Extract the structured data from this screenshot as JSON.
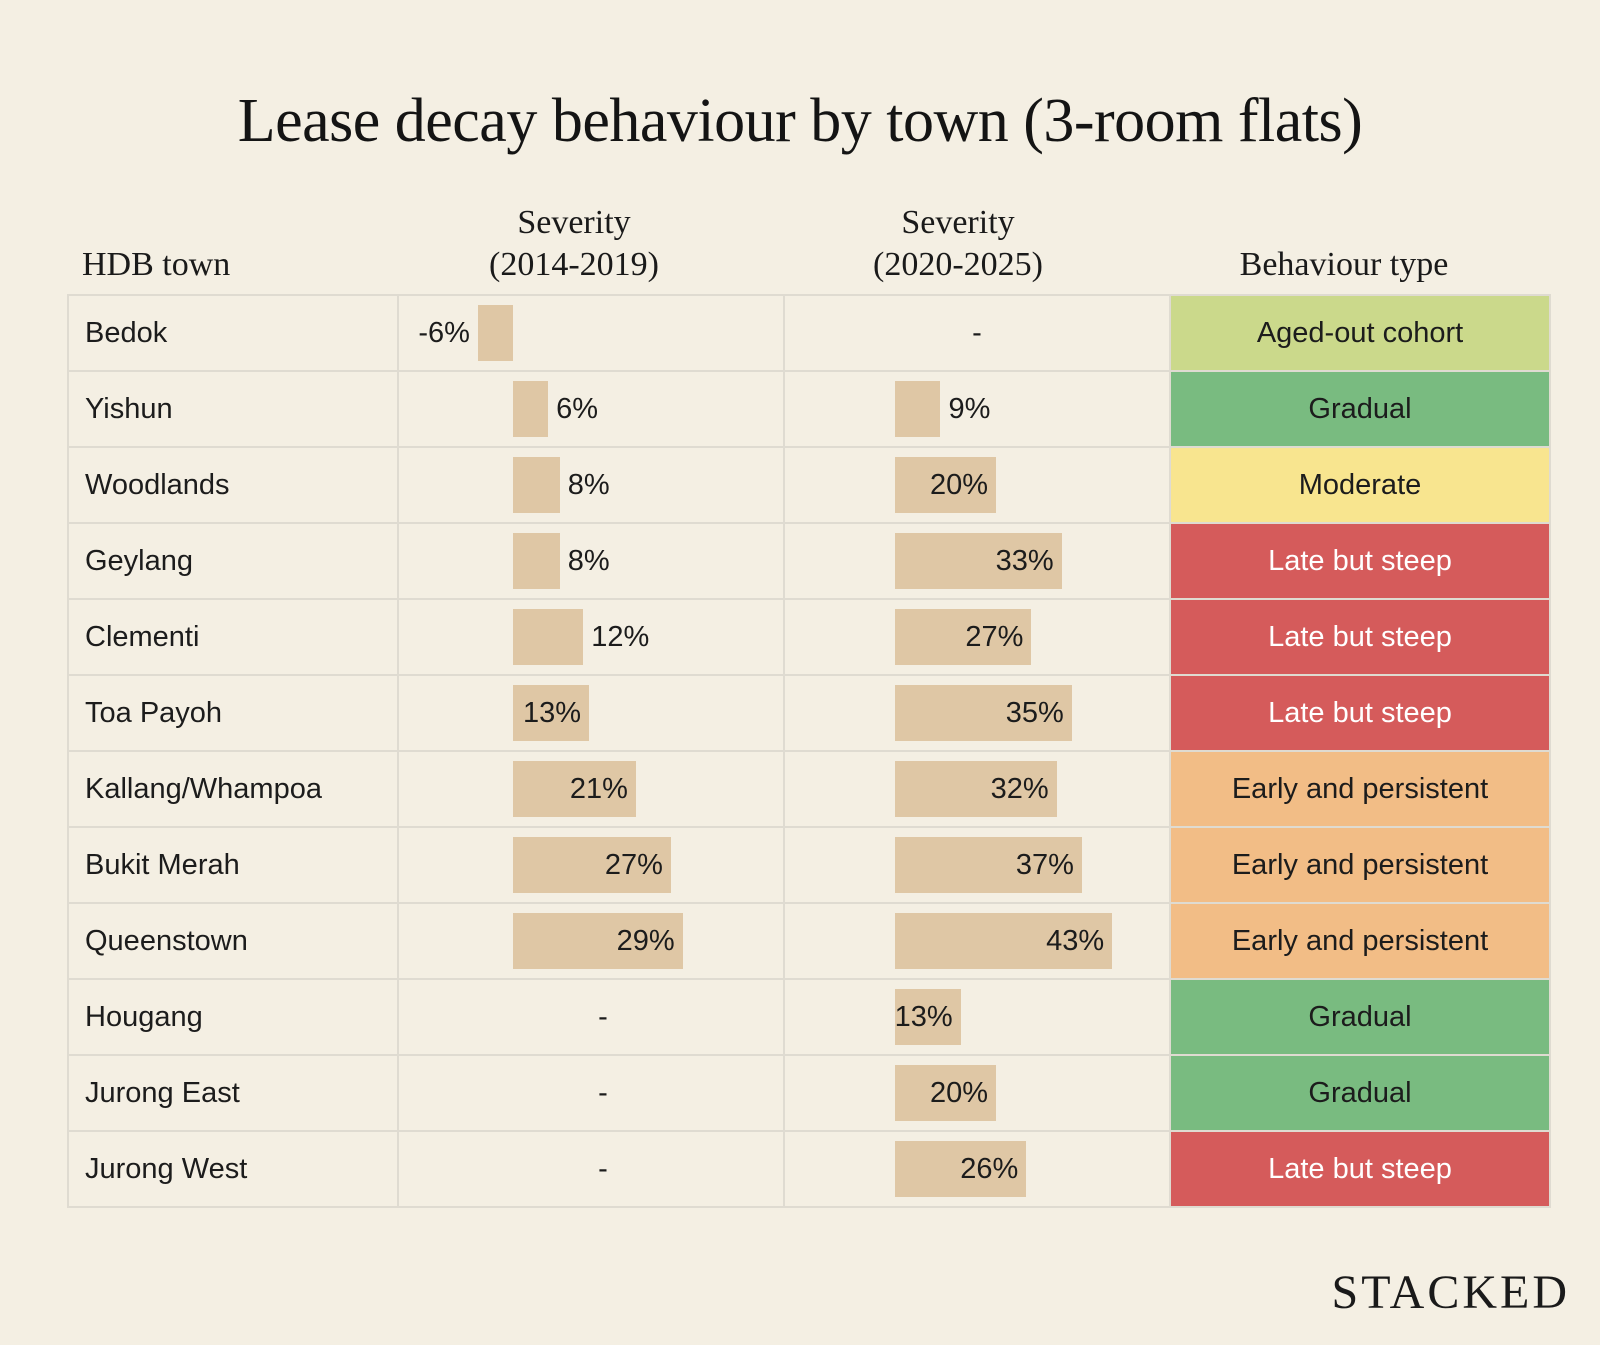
{
  "title": "Lease decay behaviour by town (3-room flats)",
  "headers": {
    "town": "HDB town",
    "sev1_line1": "Severity",
    "sev1_line2": "(2014-2019)",
    "sev2_line1": "Severity",
    "sev2_line2": "(2020-2025)",
    "type": "Behaviour type"
  },
  "logo": "STACKED",
  "colors": {
    "background": "#f4efe3",
    "bar": "#dfc7a5",
    "aged_out": "#cbd98b",
    "gradual": "#79bb80",
    "moderate": "#f8e58f",
    "late_steep": "#d55b5b",
    "early_persistent": "#f2bd86"
  },
  "chart_data": {
    "type": "table",
    "columns": [
      "HDB town",
      "Severity (2014-2019)",
      "Severity (2020-2025)",
      "Behaviour type"
    ],
    "rows": [
      {
        "town": "Bedok",
        "sev1": -6,
        "sev1_label": "-6%",
        "sev2": null,
        "sev2_label": "-",
        "type": "Aged-out cohort",
        "type_key": "aged_out"
      },
      {
        "town": "Yishun",
        "sev1": 6,
        "sev1_label": "6%",
        "sev2": 9,
        "sev2_label": "9%",
        "type": "Gradual",
        "type_key": "gradual"
      },
      {
        "town": "Woodlands",
        "sev1": 8,
        "sev1_label": "8%",
        "sev2": 20,
        "sev2_label": "20%",
        "type": "Moderate",
        "type_key": "moderate"
      },
      {
        "town": "Geylang",
        "sev1": 8,
        "sev1_label": "8%",
        "sev2": 33,
        "sev2_label": "33%",
        "type": "Late but steep",
        "type_key": "late_steep"
      },
      {
        "town": "Clementi",
        "sev1": 12,
        "sev1_label": "12%",
        "sev2": 27,
        "sev2_label": "27%",
        "type": "Late but steep",
        "type_key": "late_steep"
      },
      {
        "town": "Toa Payoh",
        "sev1": 13,
        "sev1_label": "13%",
        "sev2": 35,
        "sev2_label": "35%",
        "type": "Late but steep",
        "type_key": "late_steep"
      },
      {
        "town": "Kallang/Whampoa",
        "sev1": 21,
        "sev1_label": "21%",
        "sev2": 32,
        "sev2_label": "32%",
        "type": "Early and persistent",
        "type_key": "early_persistent"
      },
      {
        "town": "Bukit Merah",
        "sev1": 27,
        "sev1_label": "27%",
        "sev2": 37,
        "sev2_label": "37%",
        "type": "Early and persistent",
        "type_key": "early_persistent"
      },
      {
        "town": "Queenstown",
        "sev1": 29,
        "sev1_label": "29%",
        "sev2": 43,
        "sev2_label": "43%",
        "type": "Early and persistent",
        "type_key": "early_persistent"
      },
      {
        "town": "Hougang",
        "sev1": null,
        "sev1_label": "-",
        "sev2": 13,
        "sev2_label": "13%",
        "type": "Gradual",
        "type_key": "gradual"
      },
      {
        "town": "Jurong East",
        "sev1": null,
        "sev1_label": "-",
        "sev2": 20,
        "sev2_label": "20%",
        "type": "Gradual",
        "type_key": "gradual"
      },
      {
        "town": "Jurong West",
        "sev1": null,
        "sev1_label": "-",
        "sev2": 26,
        "sev2_label": "26%",
        "type": "Late but steep",
        "type_key": "late_steep"
      }
    ]
  }
}
